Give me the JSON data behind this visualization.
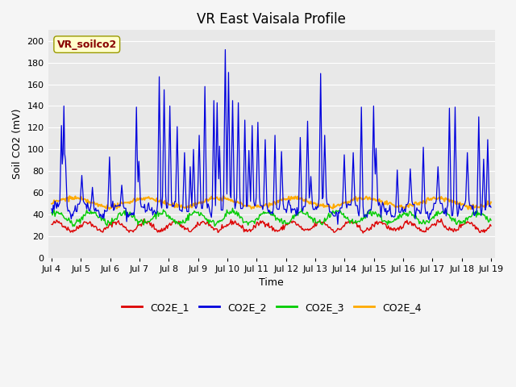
{
  "title": "VR East Vaisala Profile",
  "ylabel": "Soil CO2 (mV)",
  "xlabel": "Time",
  "annotation_text": "VR_soilco2",
  "ylim": [
    0,
    210
  ],
  "yticks": [
    0,
    20,
    40,
    60,
    80,
    100,
    120,
    140,
    160,
    180,
    200
  ],
  "n_points": 540,
  "fig_bg_color": "#f5f5f5",
  "plot_bg_color": "#e8e8e8",
  "line_colors": {
    "CO2E_1": "#dd0000",
    "CO2E_2": "#0000dd",
    "CO2E_3": "#00cc00",
    "CO2E_4": "#ffaa00"
  },
  "annotation_bbox_facecolor": "#ffffcc",
  "annotation_color": "#880000",
  "annotation_fontsize": 9,
  "title_fontsize": 12,
  "axis_label_fontsize": 9,
  "tick_label_fontsize": 8,
  "legend_fontsize": 9
}
